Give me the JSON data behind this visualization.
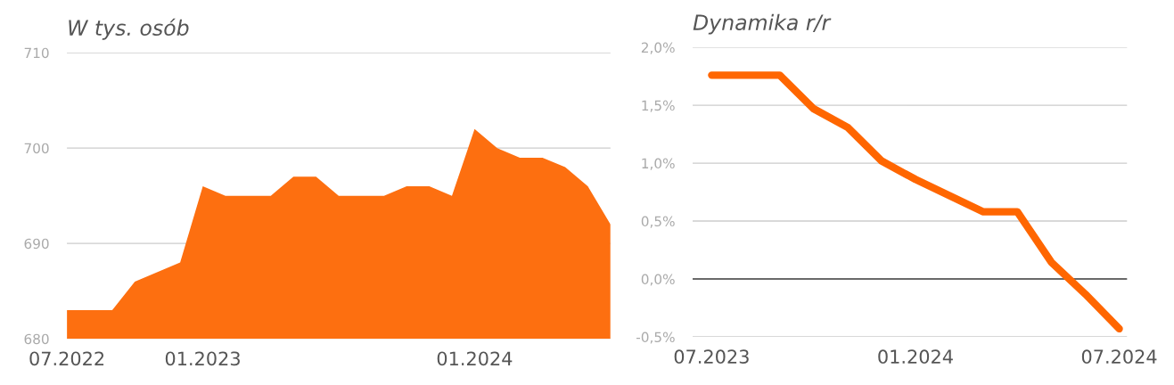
{
  "chart_data": [
    {
      "type": "area",
      "title": "W tys. osób",
      "color": "#fd6f10",
      "categories": [
        "07.2022",
        null,
        null,
        null,
        null,
        null,
        "01.2023",
        null,
        null,
        null,
        null,
        null,
        null,
        null,
        null,
        null,
        null,
        null,
        "01.2024",
        null,
        null,
        null,
        null,
        null,
        null
      ],
      "values": [
        683,
        683,
        683,
        686,
        687,
        688,
        696,
        695,
        695,
        695,
        697,
        697,
        695,
        695,
        695,
        696,
        696,
        695,
        702,
        700,
        699,
        699,
        698,
        696,
        692
      ],
      "ylim": [
        680,
        710
      ],
      "yticks": [
        680,
        690,
        700,
        710
      ],
      "grid": "y"
    },
    {
      "type": "line",
      "title": "Dynamika r/r",
      "color": "#ff6600",
      "categories": [
        "07.2023",
        null,
        null,
        null,
        null,
        null,
        "01.2024",
        null,
        null,
        null,
        null,
        null,
        "07.2024"
      ],
      "values": [
        1.76,
        1.76,
        1.76,
        1.47,
        1.31,
        1.02,
        0.86,
        0.72,
        0.58,
        0.58,
        0.145,
        -0.13,
        -0.43
      ],
      "ylim": [
        -0.5,
        2.0
      ],
      "yticks": [
        {
          "value": -0.5,
          "label": "-0,5%"
        },
        {
          "value": 0,
          "label": "0,0%"
        },
        {
          "value": 0.5,
          "label": "0,5%"
        },
        {
          "value": 1.0,
          "label": "1,0%"
        },
        {
          "value": 1.5,
          "label": "1,5%"
        },
        {
          "value": 2.0,
          "label": "2,0%"
        }
      ],
      "grid": "y",
      "ref_lines": [
        {
          "axis": "y",
          "value": 0,
          "color": "#444444"
        }
      ]
    }
  ]
}
